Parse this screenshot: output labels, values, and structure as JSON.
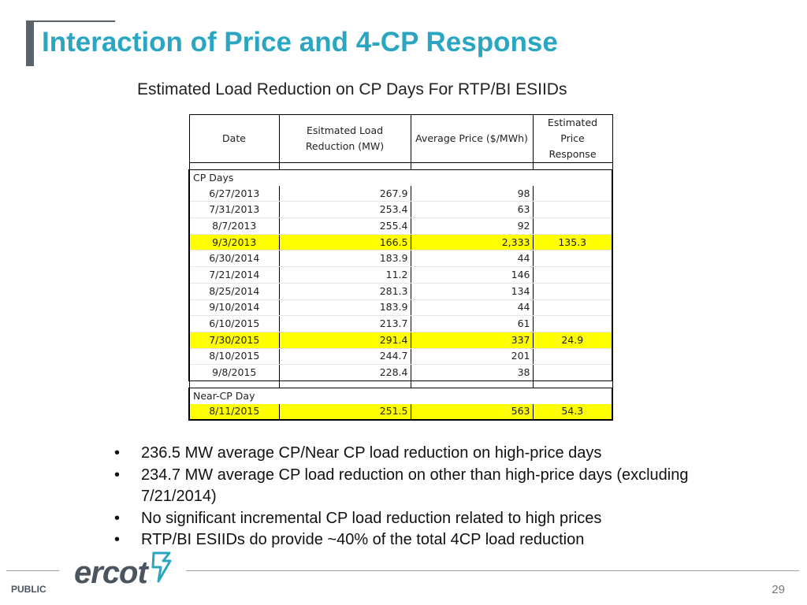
{
  "title": "Interaction of Price and 4-CP Response",
  "subtitle": "Estimated Load Reduction on CP Days For RTP/BI ESIIDs",
  "table": {
    "headers": [
      "Date",
      "Esitmated Load Reduction (MW)",
      "Average Price ($/MWh)",
      "Estimated Price Response"
    ],
    "cp_group_label": "CP Days",
    "cp_rows": [
      {
        "date": "6/27/2013",
        "load": "267.9",
        "price": "98",
        "response": "",
        "highlight": false
      },
      {
        "date": "7/31/2013",
        "load": "253.4",
        "price": "63",
        "response": "",
        "highlight": false
      },
      {
        "date": "8/7/2013",
        "load": "255.4",
        "price": "92",
        "response": "",
        "highlight": false
      },
      {
        "date": "9/3/2013",
        "load": "166.5",
        "price": "2,333",
        "response": "135.3",
        "highlight": true
      },
      {
        "date": "6/30/2014",
        "load": "183.9",
        "price": "44",
        "response": "",
        "highlight": false
      },
      {
        "date": "7/21/2014",
        "load": "11.2",
        "price": "146",
        "response": "",
        "highlight": false
      },
      {
        "date": "8/25/2014",
        "load": "281.3",
        "price": "134",
        "response": "",
        "highlight": false
      },
      {
        "date": "9/10/2014",
        "load": "183.9",
        "price": "44",
        "response": "",
        "highlight": false
      },
      {
        "date": "6/10/2015",
        "load": "213.7",
        "price": "61",
        "response": "",
        "highlight": false
      },
      {
        "date": "7/30/2015",
        "load": "291.4",
        "price": "337",
        "response": "24.9",
        "highlight": true
      },
      {
        "date": "8/10/2015",
        "load": "244.7",
        "price": "201",
        "response": "",
        "highlight": false
      },
      {
        "date": "9/8/2015",
        "load": "228.4",
        "price": "38",
        "response": "",
        "highlight": false
      }
    ],
    "near_group_label": "Near-CP Day",
    "near_rows": [
      {
        "date": "8/11/2015",
        "load": "251.5",
        "price": "563",
        "response": "54.3",
        "highlight": true
      }
    ]
  },
  "bullets": [
    "236.5 MW average CP/Near CP load reduction on high-price days",
    "234.7 MW average CP load reduction on other than high-price days (excluding 7/21/2014)",
    "No significant incremental CP load reduction related to high prices",
    "RTP/BI ESIIDs do provide ~40% of the total 4CP load reduction"
  ],
  "bullet_symbol": "•",
  "footer": {
    "logo_text": "ercot",
    "logo_icon": "lightning-bolt-icon",
    "classification": "PUBLIC",
    "page_number": "29"
  },
  "colors": {
    "title": "#2aa6c2",
    "highlight": "#ffff00",
    "accent": "#5a6269"
  }
}
